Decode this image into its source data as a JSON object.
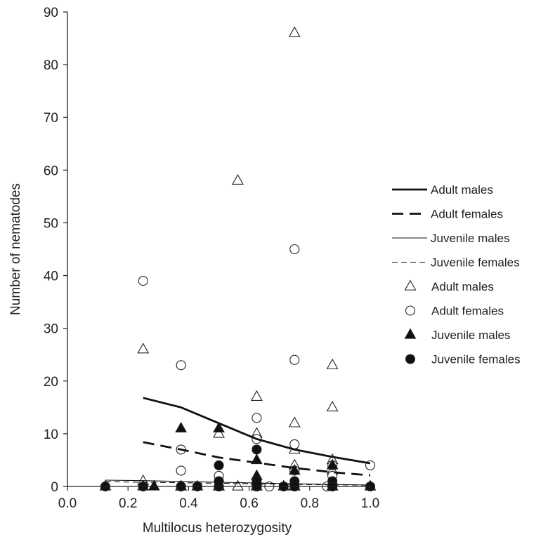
{
  "chart_data": {
    "type": "scatter",
    "xlabel": "Multilocus heterozygosity",
    "ylabel": "Number of nematodes",
    "xlim": [
      0.0,
      1.0
    ],
    "ylim": [
      0,
      90
    ],
    "xticks": [
      0.0,
      0.2,
      0.4,
      0.6,
      0.8,
      1.0
    ],
    "xtick_labels": [
      "0.0",
      "0.2",
      "0.4",
      "0.6",
      "0.8",
      "1.0"
    ],
    "yticks": [
      0,
      10,
      20,
      30,
      40,
      50,
      60,
      70,
      80,
      90
    ],
    "ytick_labels": [
      "0",
      "10",
      "20",
      "30",
      "40",
      "50",
      "60",
      "70",
      "80",
      "90"
    ],
    "grid": false,
    "legend_position": "right",
    "series": [
      {
        "name": "Adult males",
        "kind": "scatter",
        "marker": "open-triangle",
        "points": [
          [
            0.25,
            26
          ],
          [
            0.25,
            1
          ],
          [
            0.375,
            0
          ],
          [
            0.5,
            10
          ],
          [
            0.5,
            0
          ],
          [
            0.5625,
            58
          ],
          [
            0.5625,
            0
          ],
          [
            0.625,
            17
          ],
          [
            0.625,
            10
          ],
          [
            0.625,
            1
          ],
          [
            0.625,
            0
          ],
          [
            0.75,
            86
          ],
          [
            0.75,
            12
          ],
          [
            0.75,
            7
          ],
          [
            0.75,
            4
          ],
          [
            0.75,
            0
          ],
          [
            0.875,
            23
          ],
          [
            0.875,
            15
          ],
          [
            0.875,
            5
          ],
          [
            0.875,
            3
          ],
          [
            0.875,
            1
          ],
          [
            0.875,
            0
          ]
        ]
      },
      {
        "name": "Adult females",
        "kind": "scatter",
        "marker": "open-circle",
        "points": [
          [
            0.25,
            39
          ],
          [
            0.25,
            0
          ],
          [
            0.375,
            23
          ],
          [
            0.375,
            7
          ],
          [
            0.375,
            3
          ],
          [
            0.375,
            0
          ],
          [
            0.5,
            2
          ],
          [
            0.5,
            1
          ],
          [
            0.5,
            0
          ],
          [
            0.625,
            13
          ],
          [
            0.625,
            9
          ],
          [
            0.625,
            0
          ],
          [
            0.6667,
            0
          ],
          [
            0.75,
            45
          ],
          [
            0.75,
            24
          ],
          [
            0.75,
            8
          ],
          [
            0.75,
            3
          ],
          [
            0.75,
            0
          ],
          [
            0.857,
            0
          ],
          [
            0.875,
            4
          ],
          [
            0.875,
            2
          ],
          [
            0.875,
            0
          ],
          [
            1.0,
            4
          ]
        ]
      },
      {
        "name": "Juvenile males",
        "kind": "scatter",
        "marker": "filled-triangle",
        "points": [
          [
            0.125,
            0
          ],
          [
            0.25,
            0
          ],
          [
            0.286,
            0
          ],
          [
            0.375,
            11
          ],
          [
            0.375,
            0
          ],
          [
            0.429,
            0
          ],
          [
            0.5,
            11
          ],
          [
            0.5,
            0
          ],
          [
            0.625,
            5
          ],
          [
            0.625,
            2
          ],
          [
            0.625,
            0
          ],
          [
            0.714,
            0
          ],
          [
            0.75,
            3
          ],
          [
            0.75,
            0
          ],
          [
            0.875,
            4
          ],
          [
            0.875,
            0
          ],
          [
            1.0,
            0
          ]
        ]
      },
      {
        "name": "Juvenile females",
        "kind": "scatter",
        "marker": "filled-circle",
        "points": [
          [
            0.125,
            0
          ],
          [
            0.25,
            0
          ],
          [
            0.375,
            0
          ],
          [
            0.429,
            0
          ],
          [
            0.5,
            4
          ],
          [
            0.5,
            1
          ],
          [
            0.5,
            0
          ],
          [
            0.625,
            7
          ],
          [
            0.625,
            1
          ],
          [
            0.625,
            0
          ],
          [
            0.714,
            0
          ],
          [
            0.75,
            1
          ],
          [
            0.75,
            0
          ],
          [
            0.875,
            1
          ],
          [
            0.875,
            0
          ],
          [
            1.0,
            0
          ]
        ]
      },
      {
        "name": "Adult males",
        "kind": "line",
        "style": "solid-thick",
        "points": [
          [
            0.25,
            16.8
          ],
          [
            0.375,
            15.0
          ],
          [
            0.5,
            12.0
          ],
          [
            0.625,
            9.0
          ],
          [
            0.75,
            7.0
          ],
          [
            0.875,
            5.6
          ],
          [
            1.0,
            4.4
          ]
        ]
      },
      {
        "name": "Adult females",
        "kind": "line",
        "style": "dashed-thick",
        "points": [
          [
            0.25,
            8.4
          ],
          [
            0.375,
            7.0
          ],
          [
            0.5,
            5.5
          ],
          [
            0.625,
            4.5
          ],
          [
            0.75,
            3.5
          ],
          [
            0.875,
            2.7
          ],
          [
            1.0,
            2.1
          ]
        ]
      },
      {
        "name": "Juvenile males",
        "kind": "line",
        "style": "solid-thin",
        "points": [
          [
            0.125,
            1.2
          ],
          [
            0.25,
            1.1
          ],
          [
            0.375,
            0.95
          ],
          [
            0.5,
            0.8
          ],
          [
            0.625,
            0.65
          ],
          [
            0.75,
            0.5
          ],
          [
            0.875,
            0.38
          ],
          [
            1.0,
            0.28
          ]
        ]
      },
      {
        "name": "Juvenile females",
        "kind": "line",
        "style": "dashed-thin",
        "points": [
          [
            0.125,
            0.9
          ],
          [
            0.25,
            0.8
          ],
          [
            0.375,
            0.7
          ],
          [
            0.5,
            0.6
          ],
          [
            0.625,
            0.5
          ],
          [
            0.75,
            0.4
          ],
          [
            0.875,
            0.3
          ],
          [
            1.0,
            0.22
          ]
        ]
      }
    ],
    "legend": [
      {
        "label": "Adult males",
        "symbol": "solid-thick"
      },
      {
        "label": "Adult females",
        "symbol": "dashed-thick"
      },
      {
        "label": "Juvenile males",
        "symbol": "solid-thin"
      },
      {
        "label": "Juvenile females",
        "symbol": "dashed-thin"
      },
      {
        "label": "Adult males",
        "symbol": "open-triangle"
      },
      {
        "label": "Adult females",
        "symbol": "open-circle"
      },
      {
        "label": "Juvenile males",
        "symbol": "filled-triangle"
      },
      {
        "label": "Juvenile females",
        "symbol": "filled-circle"
      }
    ]
  }
}
